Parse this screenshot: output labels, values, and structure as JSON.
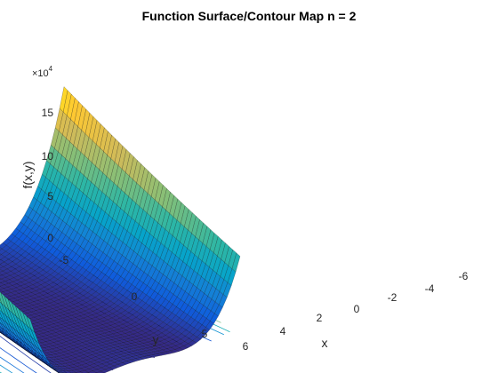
{
  "chart_data": {
    "type": "surface",
    "title": "Function Surface/Contour Map n = 2",
    "xlabel": "x",
    "ylabel": "y",
    "zlabel": "f(x,y)",
    "z_multiplier": "×10",
    "z_multiplier_exp": "4",
    "x_ticks": [
      "-6",
      "-4",
      "-2",
      "0",
      "2",
      "4",
      "6"
    ],
    "y_ticks": [
      "-5",
      "0",
      "5"
    ],
    "z_ticks": [
      "0",
      "5",
      "10",
      "15"
    ],
    "xlim": [
      -6,
      6
    ],
    "ylim": [
      -6,
      6
    ],
    "zlim": [
      0,
      180000
    ],
    "colormap": [
      "#352a87",
      "#0f5cdd",
      "#1481d6",
      "#06a4ca",
      "#2eb7a4",
      "#87bf77",
      "#d1bb59",
      "#fec832",
      "#f9fb0e"
    ],
    "path_color": "#0072bd",
    "grid": false,
    "legend": "none"
  }
}
